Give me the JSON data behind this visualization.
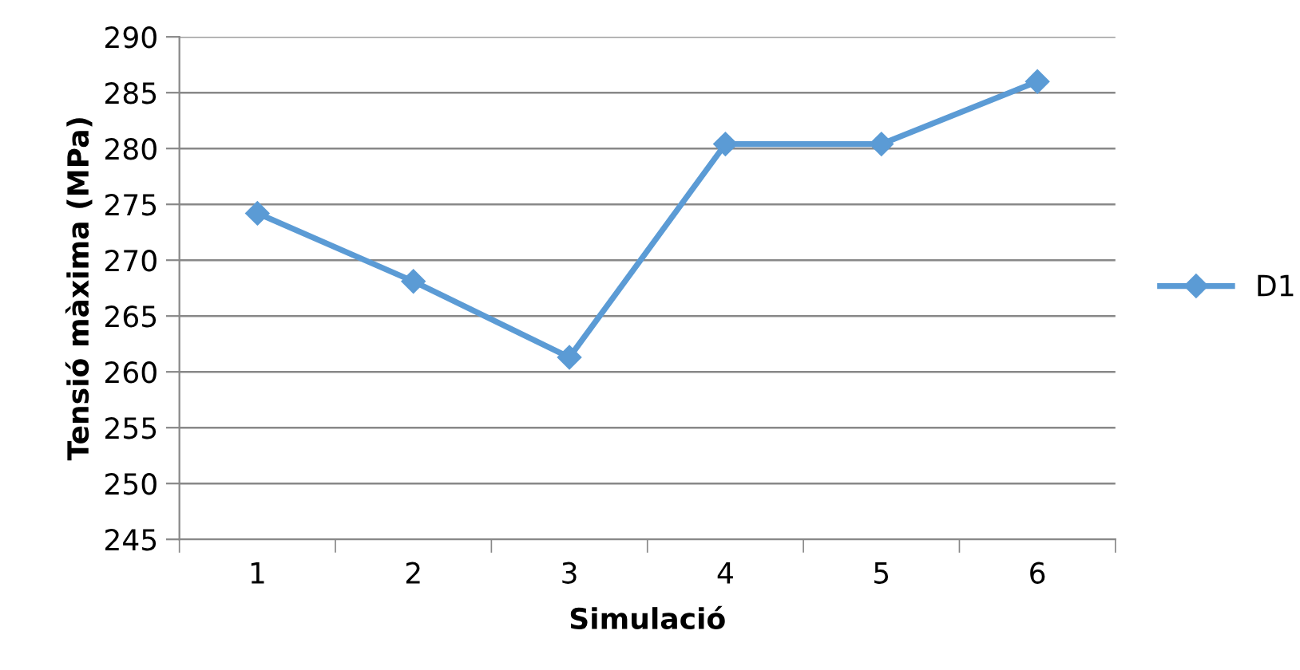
{
  "chart_data": {
    "type": "line",
    "xlabel": "Simulació",
    "ylabel": "Tensió màxima (MPa)",
    "categories": [
      "1",
      "2",
      "3",
      "4",
      "5",
      "6"
    ],
    "series": [
      {
        "name": "D1",
        "color": "#5b9bd5",
        "values": [
          274.2,
          268.1,
          261.3,
          280.4,
          280.4,
          286.0
        ]
      }
    ],
    "ylim": [
      245,
      290
    ],
    "yticks": [
      245,
      250,
      255,
      260,
      265,
      270,
      275,
      280,
      285,
      290
    ],
    "grid": "y",
    "legend": "right",
    "marker": "diamond",
    "line_style": "solid"
  }
}
